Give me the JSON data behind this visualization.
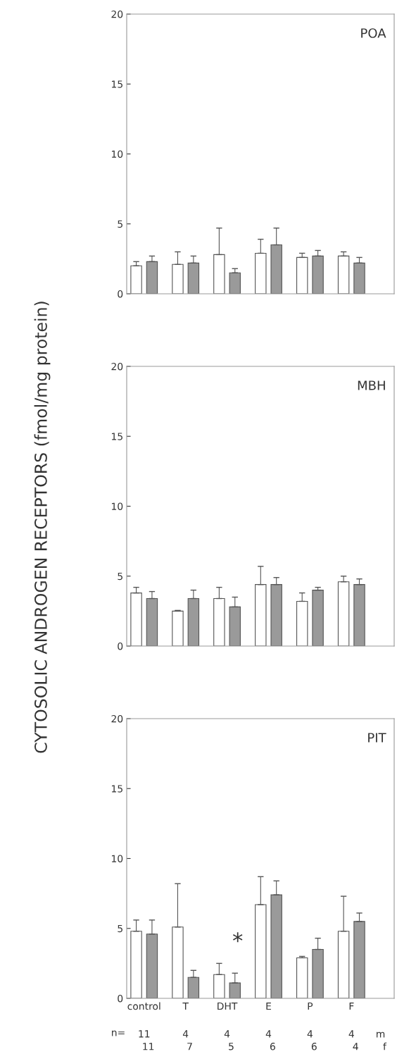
{
  "chart_data": [
    {
      "type": "bar",
      "ylim": [
        0,
        20
      ],
      "yticks": [
        0,
        5,
        10,
        15,
        20
      ],
      "tick_labels": "y",
      "annotations": [
        "POA"
      ],
      "series": [
        {
          "color": "#ffffff",
          "values": [
            2.0,
            2.1,
            2.8,
            2.9,
            2.6,
            2.7
          ],
          "errors": [
            [
              2.0,
              2.3
            ],
            [
              2.1,
              3.0
            ],
            [
              2.8,
              4.7
            ],
            [
              2.9,
              3.9
            ],
            [
              2.6,
              2.9
            ],
            [
              2.7,
              3.0
            ]
          ]
        },
        {
          "color": "#9a9a9a",
          "values": [
            2.3,
            2.2,
            1.5,
            3.5,
            2.7,
            2.2
          ],
          "errors": [
            [
              2.3,
              2.7
            ],
            [
              2.2,
              2.7
            ],
            [
              1.5,
              1.8
            ],
            [
              3.5,
              4.7
            ],
            [
              2.7,
              3.1
            ],
            [
              2.2,
              2.6
            ]
          ]
        }
      ]
    },
    {
      "type": "bar",
      "ylim": [
        0,
        20
      ],
      "yticks": [
        0,
        5,
        10,
        15,
        20
      ],
      "tick_labels": "y",
      "ylabel": "CYTOSOLIC ANDROGEN RECEPTORS (fmol/mg protein)",
      "annotations": [
        "MBH"
      ],
      "series": [
        {
          "color": "#ffffff",
          "values": [
            3.8,
            2.5,
            3.4,
            4.4,
            3.2,
            4.6
          ],
          "errors": [
            [
              3.8,
              4.2
            ],
            [
              2.5,
              2.55
            ],
            [
              3.4,
              4.2
            ],
            [
              4.4,
              5.7
            ],
            [
              3.2,
              3.8
            ],
            [
              4.6,
              5.0
            ]
          ]
        },
        {
          "color": "#9a9a9a",
          "values": [
            3.4,
            3.4,
            2.8,
            4.4,
            4.0,
            4.4
          ],
          "errors": [
            [
              3.4,
              3.9
            ],
            [
              3.4,
              4.0
            ],
            [
              2.8,
              3.5
            ],
            [
              4.4,
              4.9
            ],
            [
              4.0,
              4.2
            ],
            [
              4.4,
              4.8
            ]
          ]
        }
      ]
    },
    {
      "type": "bar",
      "categories": [
        "control",
        "T",
        "DHT",
        "E",
        "P",
        "F"
      ],
      "ylim": [
        0,
        20
      ],
      "yticks": [
        0,
        5,
        10,
        15,
        20
      ],
      "annotations": [
        "PIT",
        "n=",
        "11",
        "4",
        "4",
        "4",
        "4",
        "4",
        "m",
        "11",
        "7",
        "5",
        "6",
        "6",
        "4",
        "f",
        "*"
      ],
      "series": [
        {
          "color": "#ffffff",
          "values": [
            4.8,
            5.1,
            1.7,
            6.7,
            2.9,
            4.8
          ],
          "errors": [
            [
              4.8,
              5.6
            ],
            [
              5.1,
              8.2
            ],
            [
              1.7,
              2.5
            ],
            [
              6.7,
              8.7
            ],
            [
              2.9,
              3.0
            ],
            [
              4.8,
              7.3
            ]
          ]
        },
        {
          "color": "#9a9a9a",
          "values": [
            4.6,
            1.5,
            1.1,
            7.4,
            3.5,
            5.5
          ],
          "errors": [
            [
              4.6,
              5.6
            ],
            [
              1.5,
              2.0
            ],
            [
              1.1,
              1.8
            ],
            [
              7.4,
              8.4
            ],
            [
              3.5,
              4.3
            ],
            [
              5.5,
              6.1
            ]
          ]
        }
      ]
    }
  ]
}
